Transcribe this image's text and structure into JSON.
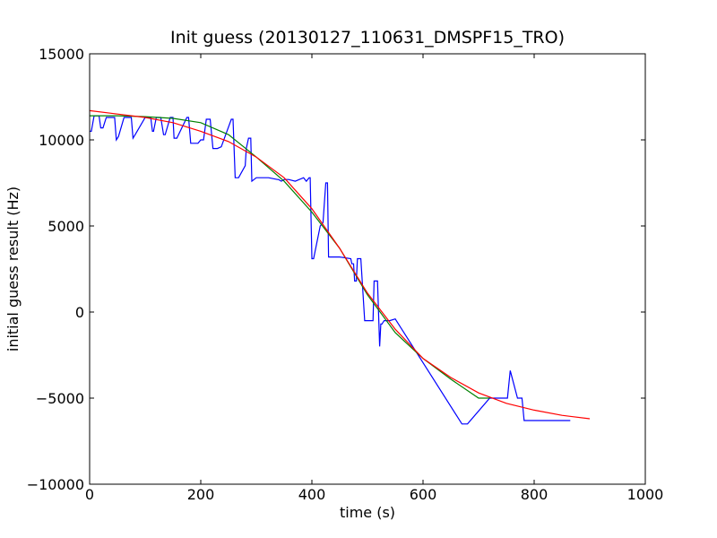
{
  "chart_data": {
    "type": "line",
    "title": "Init guess (20130127_110631_DMSPF15_TRO)",
    "xlabel": "time (s)",
    "ylabel": "initial guess result (Hz)",
    "xlim": [
      0,
      1000
    ],
    "ylim": [
      -10000,
      15000
    ],
    "xticks": [
      0,
      200,
      400,
      600,
      800,
      1000
    ],
    "yticks": [
      -10000,
      -5000,
      0,
      5000,
      10000,
      15000
    ],
    "grid": false,
    "series": [
      {
        "color": "#0000ff",
        "x": [
          0,
          3,
          8,
          17,
          20,
          24,
          30,
          45,
          48,
          52,
          62,
          75,
          78,
          82,
          100,
          110,
          113,
          115,
          120,
          128,
          133,
          136,
          145,
          150,
          152,
          157,
          175,
          178,
          182,
          195,
          200,
          205,
          210,
          213,
          217,
          222,
          230,
          237,
          255,
          258,
          262,
          268,
          280,
          282,
          286,
          290,
          292,
          300,
          310,
          322,
          338,
          340,
          345,
          350,
          358,
          370,
          385,
          390,
          395,
          397,
          400,
          403,
          415,
          420,
          425,
          428,
          430,
          432,
          450,
          470,
          472,
          475,
          477,
          480,
          482,
          484,
          488,
          495,
          498,
          502,
          510,
          512,
          518,
          522,
          524,
          526,
          530,
          540,
          550,
          670,
          680,
          720,
          740,
          752,
          757,
          770,
          778,
          782,
          785,
          800,
          865
        ],
        "y": [
          10500,
          10500,
          11400,
          11400,
          10700,
          10700,
          11300,
          11300,
          10000,
          10200,
          11300,
          11300,
          10100,
          10300,
          11300,
          11300,
          10500,
          10500,
          11300,
          11300,
          10300,
          10300,
          11300,
          11300,
          10100,
          10100,
          11300,
          11300,
          9800,
          9800,
          10000,
          10000,
          11200,
          11200,
          11200,
          9500,
          9500,
          9600,
          11200,
          11200,
          7800,
          7800,
          8500,
          9500,
          10100,
          10100,
          7600,
          7800,
          7800,
          7800,
          7700,
          7700,
          7600,
          7700,
          7700,
          7600,
          7800,
          7600,
          7800,
          7800,
          3100,
          3100,
          5000,
          5200,
          7500,
          7500,
          3200,
          3200,
          3200,
          3100,
          2800,
          2800,
          1800,
          1800,
          3100,
          3100,
          3100,
          -500,
          -500,
          -500,
          -500,
          1800,
          1800,
          -2000,
          -700,
          -700,
          -500,
          -500,
          -400,
          -6500,
          -6500,
          -5000,
          -5000,
          -5000,
          -3400,
          -5000,
          -5000,
          -6300,
          -6300,
          -6300,
          -6300
        ]
      },
      {
        "color": "#008000",
        "x": [
          0,
          50,
          100,
          150,
          200,
          250,
          300,
          350,
          400,
          450,
          500,
          550,
          600,
          650,
          700,
          720
        ],
        "y": [
          11400,
          11400,
          11350,
          11250,
          11000,
          10300,
          9000,
          7600,
          5800,
          3700,
          1000,
          -1200,
          -2700,
          -3900,
          -5000,
          -5000
        ]
      },
      {
        "color": "#ff0000",
        "x": [
          0,
          50,
          100,
          150,
          200,
          250,
          300,
          350,
          400,
          450,
          500,
          550,
          600,
          650,
          700,
          750,
          800,
          850,
          900
        ],
        "y": [
          11700,
          11500,
          11300,
          11000,
          10500,
          9900,
          9000,
          7800,
          6000,
          3700,
          1100,
          -1000,
          -2700,
          -3800,
          -4700,
          -5300,
          -5700,
          -6000,
          -6200
        ]
      }
    ]
  }
}
